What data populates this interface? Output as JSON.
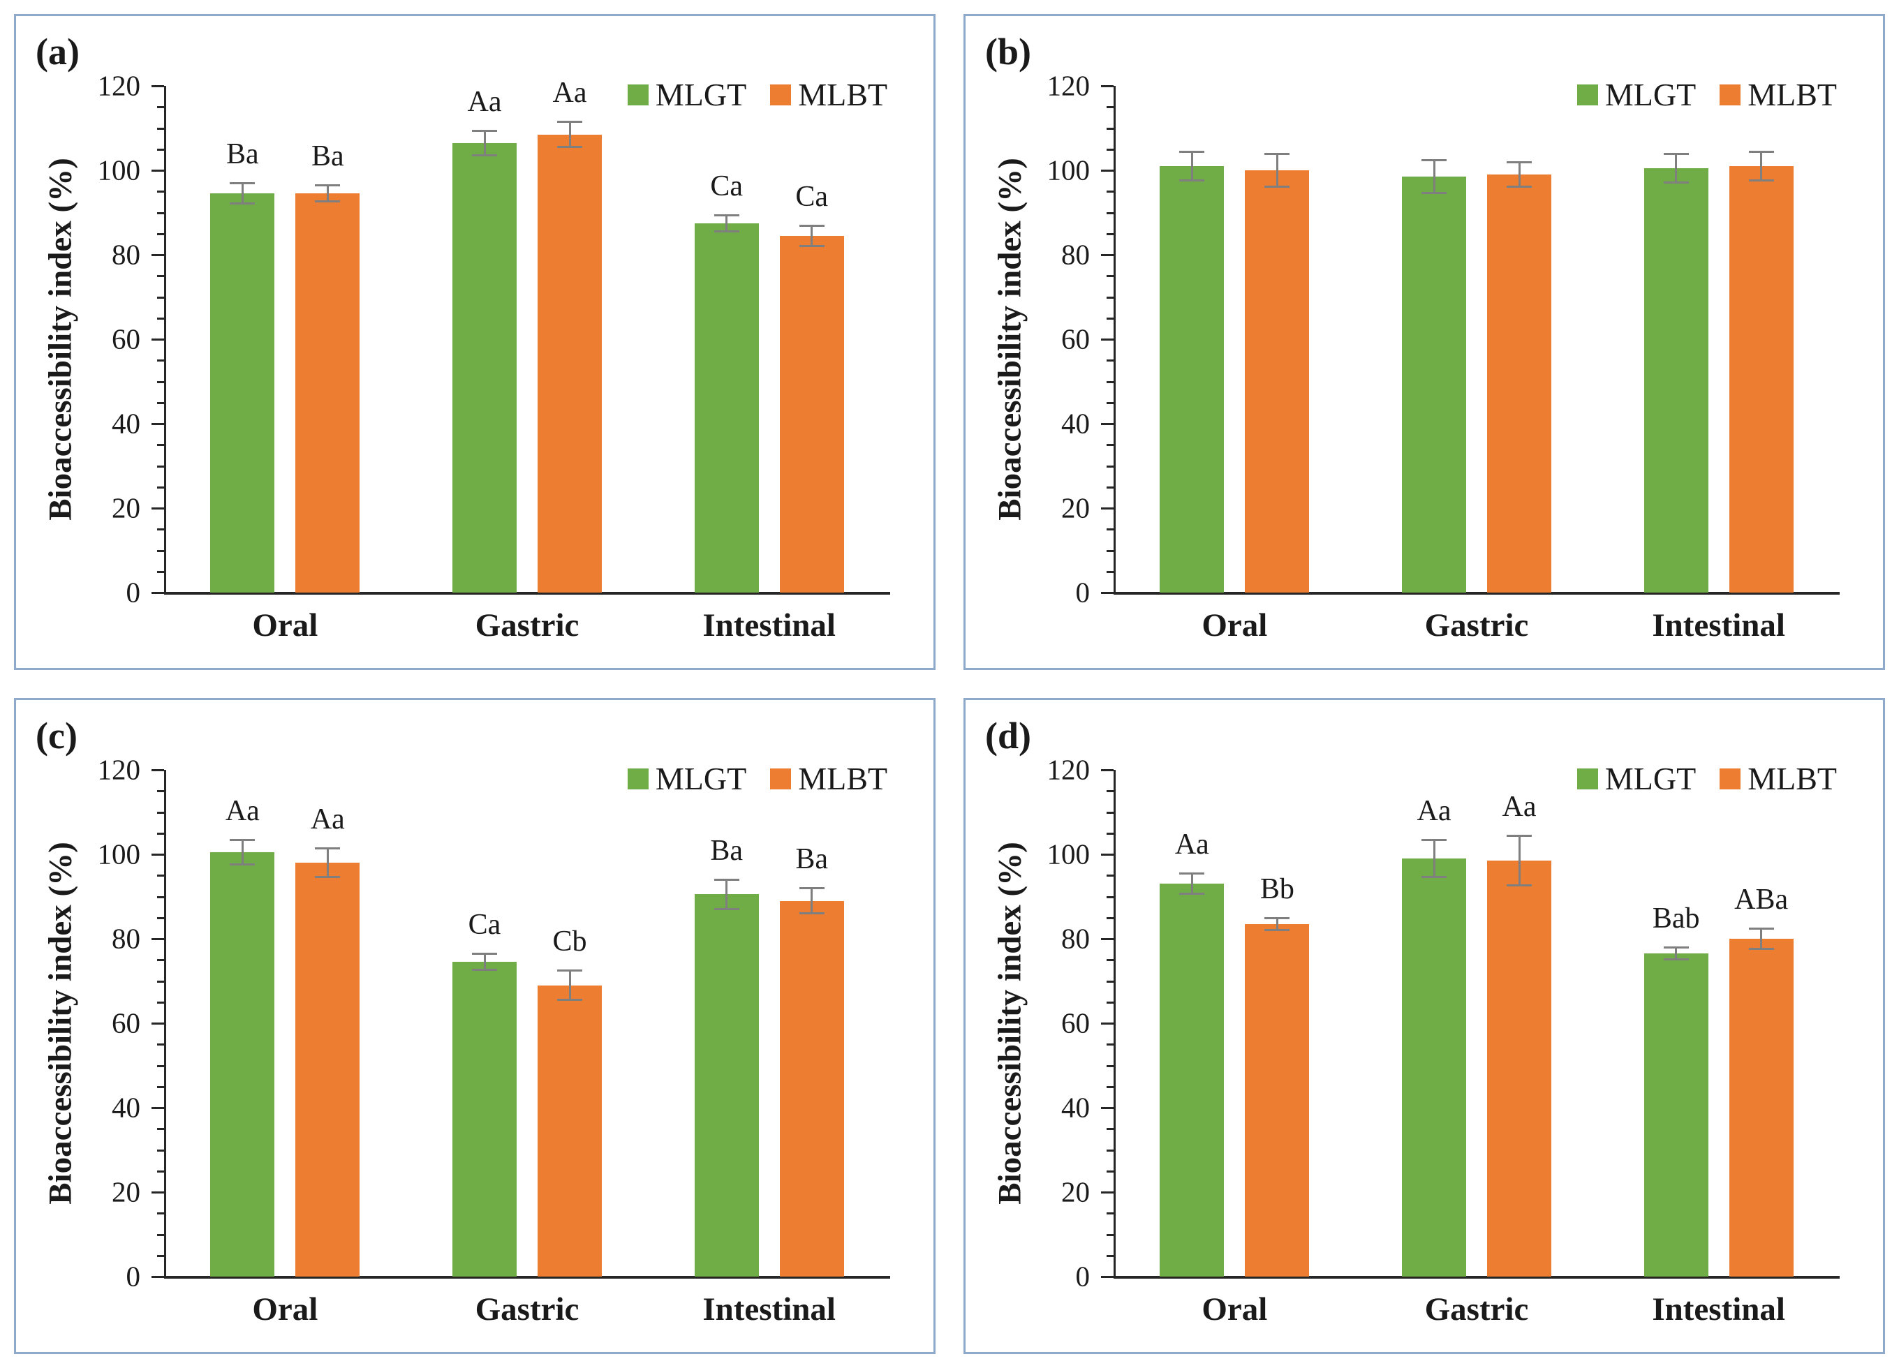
{
  "figure_type": "four-panel bar chart figure",
  "colors": {
    "mlgt": "#70AD47",
    "mlbt": "#ED7D31",
    "error_bar": "#7F7F7F",
    "panel_border": "#8FA9CB",
    "axis": "#262626",
    "text": "#1A1A1A",
    "background": "#FFFFFF"
  },
  "shared": {
    "ylabel": "Bioaccessibility index (%)",
    "legend_labels": [
      "MLGT",
      "MLBT"
    ]
  },
  "chart_data": [
    {
      "type": "bar",
      "panel": "(a)",
      "position": "top-left",
      "ylabel": "Bioaccessibility index (%)",
      "ylim": [
        0,
        120
      ],
      "yticks": [
        0,
        20,
        40,
        60,
        80,
        100,
        120
      ],
      "yminor_step": 5,
      "grid": false,
      "categories": [
        "Oral",
        "Gastric",
        "Intestinal"
      ],
      "legend": [
        "MLGT",
        "MLBT"
      ],
      "legend_position": "top-right",
      "series": [
        {
          "name": "MLGT",
          "color": "#70AD47",
          "values": [
            94.5,
            106.5,
            87.5
          ],
          "errors": [
            2.5,
            3,
            2
          ],
          "sig_labels": [
            "Ba",
            "Aa",
            "Ca"
          ]
        },
        {
          "name": "MLBT",
          "color": "#ED7D31",
          "values": [
            94.5,
            108.5,
            84.5
          ],
          "errors": [
            2,
            3,
            2.5
          ],
          "sig_labels": [
            "Ba",
            "Aa",
            "Ca"
          ]
        }
      ]
    },
    {
      "type": "bar",
      "panel": "(b)",
      "position": "top-right",
      "ylabel": "Bioaccessibility index (%)",
      "ylim": [
        0,
        120
      ],
      "yticks": [
        0,
        20,
        40,
        60,
        80,
        100,
        120
      ],
      "yminor_step": 5,
      "grid": false,
      "categories": [
        "Oral",
        "Gastric",
        "Intestinal"
      ],
      "legend": [
        "MLGT",
        "MLBT"
      ],
      "legend_position": "top-right",
      "series": [
        {
          "name": "MLGT",
          "color": "#70AD47",
          "values": [
            101,
            98.5,
            100.5
          ],
          "errors": [
            3.5,
            4,
            3.5
          ],
          "sig_labels": [
            "",
            "",
            ""
          ]
        },
        {
          "name": "MLBT",
          "color": "#ED7D31",
          "values": [
            100,
            99,
            101
          ],
          "errors": [
            4,
            3,
            3.5
          ],
          "sig_labels": [
            "",
            "",
            ""
          ]
        }
      ]
    },
    {
      "type": "bar",
      "panel": "(c)",
      "position": "bottom-left",
      "ylabel": "Bioaccessibility index (%)",
      "ylim": [
        0,
        120
      ],
      "yticks": [
        0,
        20,
        40,
        60,
        80,
        100,
        120
      ],
      "yminor_step": 5,
      "grid": false,
      "categories": [
        "Oral",
        "Gastric",
        "Intestinal"
      ],
      "legend": [
        "MLGT",
        "MLBT"
      ],
      "legend_position": "top-right",
      "series": [
        {
          "name": "MLGT",
          "color": "#70AD47",
          "values": [
            100.5,
            74.5,
            90.5
          ],
          "errors": [
            3,
            2,
            3.5
          ],
          "sig_labels": [
            "Aa",
            "Ca",
            "Ba"
          ]
        },
        {
          "name": "MLBT",
          "color": "#ED7D31",
          "values": [
            98,
            69,
            89
          ],
          "errors": [
            3.5,
            3.5,
            3
          ],
          "sig_labels": [
            "Aa",
            "Cb",
            "Ba"
          ]
        }
      ]
    },
    {
      "type": "bar",
      "panel": "(d)",
      "position": "bottom-right",
      "ylabel": "Bioaccessibility index (%)",
      "ylim": [
        0,
        120
      ],
      "yticks": [
        0,
        20,
        40,
        60,
        80,
        100,
        120
      ],
      "yminor_step": 5,
      "grid": false,
      "categories": [
        "Oral",
        "Gastric",
        "Intestinal"
      ],
      "legend": [
        "MLGT",
        "MLBT"
      ],
      "legend_position": "top-right",
      "series": [
        {
          "name": "MLGT",
          "color": "#70AD47",
          "values": [
            93,
            99,
            76.5
          ],
          "errors": [
            2.5,
            4.5,
            1.5
          ],
          "sig_labels": [
            "Aa",
            "Aa",
            "Bab"
          ]
        },
        {
          "name": "MLBT",
          "color": "#ED7D31",
          "values": [
            83.5,
            98.5,
            80
          ],
          "errors": [
            1.5,
            6,
            2.5
          ],
          "sig_labels": [
            "Bb",
            "Aa",
            "ABa"
          ]
        }
      ]
    }
  ]
}
